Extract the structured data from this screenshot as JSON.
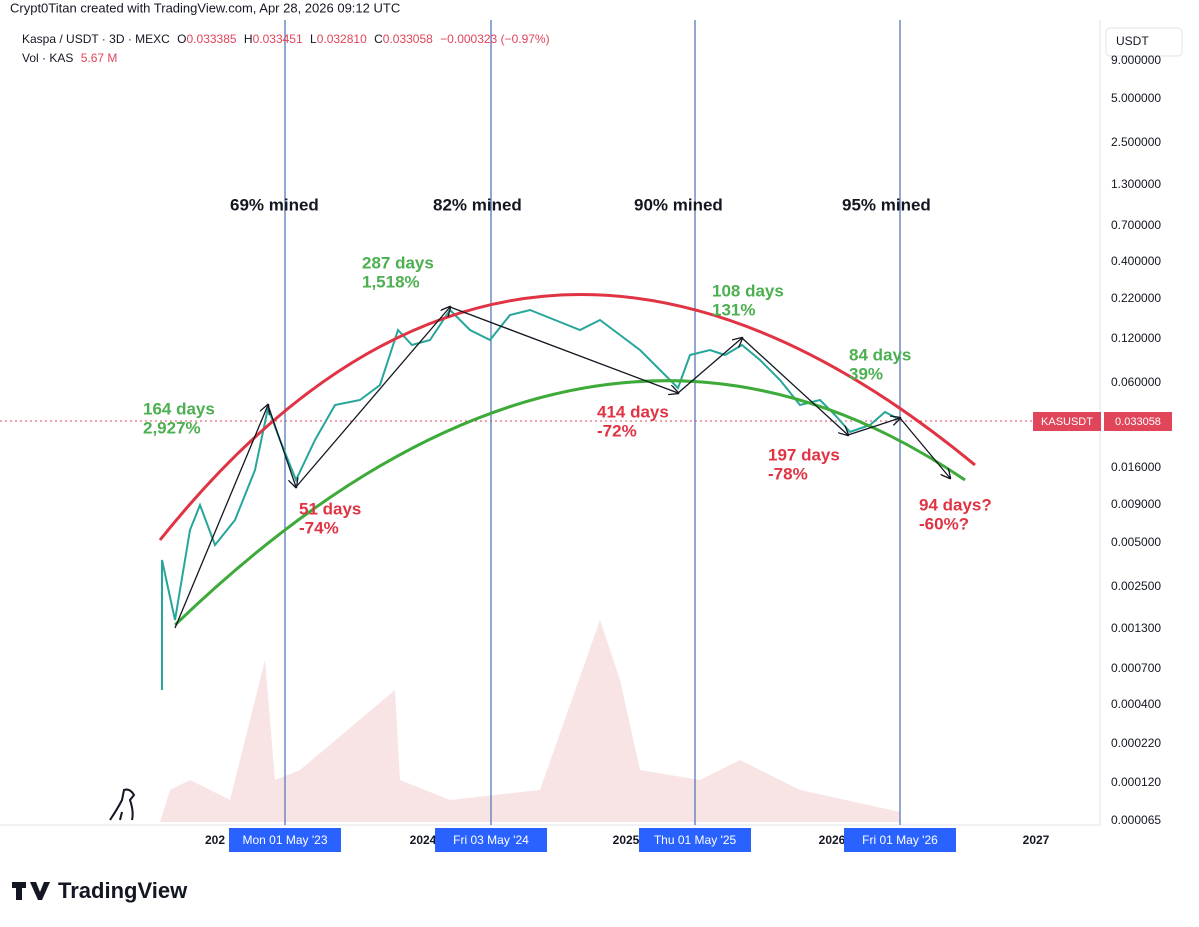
{
  "header": {
    "credit": "Crypt0Titan created with TradingView.com, Apr 28, 2026 09:12 UTC",
    "symbol": "Kaspa / USDT · 3D · MEXC",
    "ohlc": [
      {
        "key": "O",
        "value": "0.033385"
      },
      {
        "key": "H",
        "value": "0.033451"
      },
      {
        "key": "L",
        "value": "0.032810"
      },
      {
        "key": "C",
        "value": "0.033058"
      }
    ],
    "change": "−0.000323 (−0.97%)",
    "volume_label": "Vol · KAS",
    "volume": "5.67 M"
  },
  "price_axis": {
    "unit": "USDT",
    "ticks": [
      "9.000000",
      "5.000000",
      "2.500000",
      "1.300000",
      "0.700000",
      "0.400000",
      "0.220000",
      "0.120000",
      "0.060000",
      "0.016000",
      "0.009000",
      "0.005000",
      "0.002500",
      "0.001300",
      "0.000700",
      "0.000400",
      "0.000220",
      "0.000120",
      "0.000065"
    ],
    "current_symbol": "KASUSDT",
    "current_price": "0.033058"
  },
  "time_axis": {
    "ticks": [
      "202",
      "2024",
      "2025",
      "2026",
      "2027"
    ],
    "markers": [
      "Mon 01 May '23",
      "Fri 03 May '24",
      "Thu 01 May '25",
      "Fri 01 May '26"
    ]
  },
  "annotations": {
    "mined": [
      "69% mined",
      "82% mined",
      "90% mined",
      "95% mined"
    ],
    "rallies": [
      {
        "days": "164 days",
        "change": "2,927%"
      },
      {
        "days": "287 days",
        "change": "1,518%"
      },
      {
        "days": "108 days",
        "change": "131%"
      },
      {
        "days": "84 days",
        "change": "39%"
      }
    ],
    "drops": [
      {
        "days": "51 days",
        "change": "-74%"
      },
      {
        "days": "414 days",
        "change": "-72%"
      },
      {
        "days": "197 days",
        "change": "-78%"
      },
      {
        "days": "94 days?",
        "change": "-60%?"
      }
    ]
  },
  "footer": "TradingView"
}
